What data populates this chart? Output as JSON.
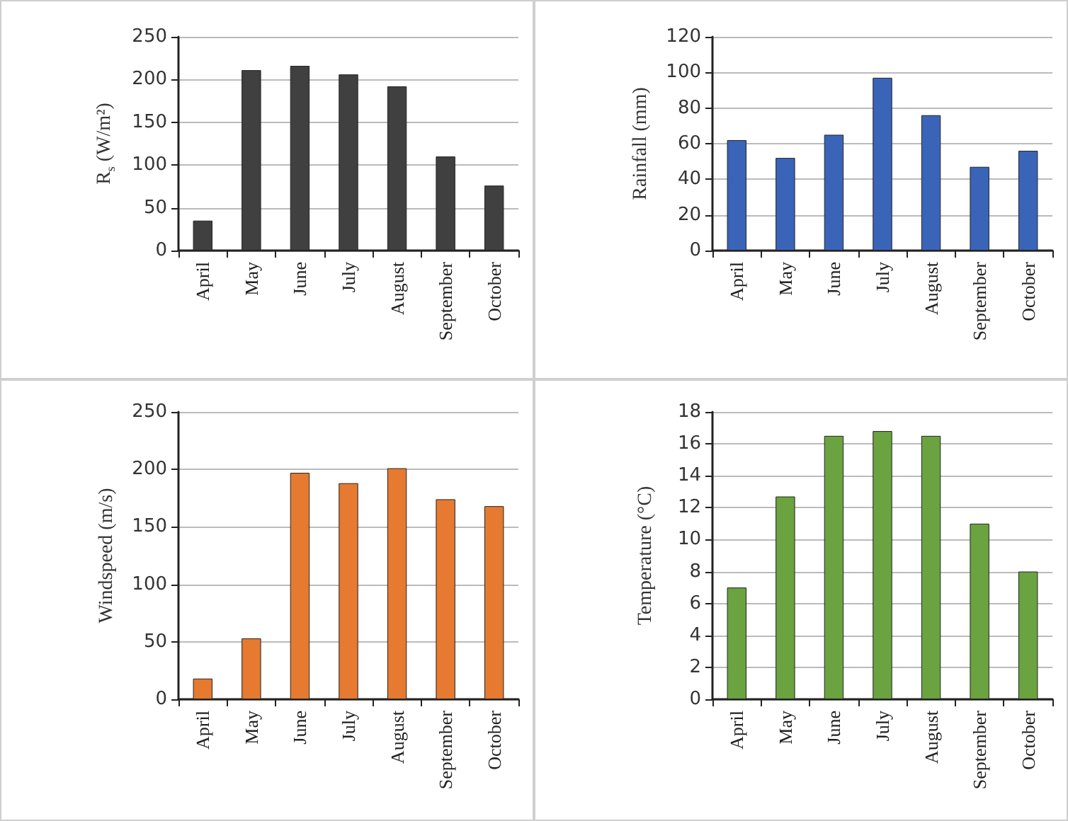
{
  "chart_data": [
    {
      "type": "bar",
      "ylabel": "R$_{s}$ (W/m²)",
      "categories": [
        "April",
        "May",
        "June",
        "July",
        "August",
        "September",
        "October"
      ],
      "series": [
        {
          "color": "#404040",
          "values": [
            35,
            211,
            216,
            206,
            192,
            110,
            76
          ]
        }
      ],
      "ylim": [
        0,
        250
      ],
      "yticks": [
        0,
        50,
        100,
        150,
        200,
        250
      ],
      "grid": "y"
    },
    {
      "type": "bar",
      "ylabel": "Rainfall (mm)",
      "categories": [
        "April",
        "May",
        "June",
        "July",
        "August",
        "September",
        "October"
      ],
      "series": [
        {
          "color": "#3a64b8",
          "values": [
            62,
            52,
            65,
            97,
            76,
            47,
            56
          ]
        }
      ],
      "ylim": [
        0,
        120
      ],
      "yticks": [
        0,
        20,
        40,
        60,
        80,
        100,
        120
      ],
      "grid": "y"
    },
    {
      "type": "bar",
      "ylabel": "Windspeed (m/s)",
      "categories": [
        "April",
        "May",
        "June",
        "July",
        "August",
        "September",
        "October"
      ],
      "series": [
        {
          "color": "#e57a30",
          "values": [
            18,
            53,
            197,
            188,
            201,
            174,
            168
          ]
        }
      ],
      "ylim": [
        0,
        250
      ],
      "yticks": [
        0,
        50,
        100,
        150,
        200,
        250
      ],
      "grid": "y"
    },
    {
      "type": "bar",
      "ylabel": "Temperature (°C)",
      "categories": [
        "April",
        "May",
        "June",
        "July",
        "August",
        "September",
        "October"
      ],
      "series": [
        {
          "color": "#6aa33f",
          "values": [
            7,
            12.7,
            16.5,
            16.8,
            16.5,
            11,
            8
          ]
        }
      ],
      "ylim": [
        0,
        18
      ],
      "yticks": [
        0,
        2,
        4,
        6,
        8,
        10,
        12,
        14,
        16,
        18
      ],
      "grid": "y"
    }
  ]
}
